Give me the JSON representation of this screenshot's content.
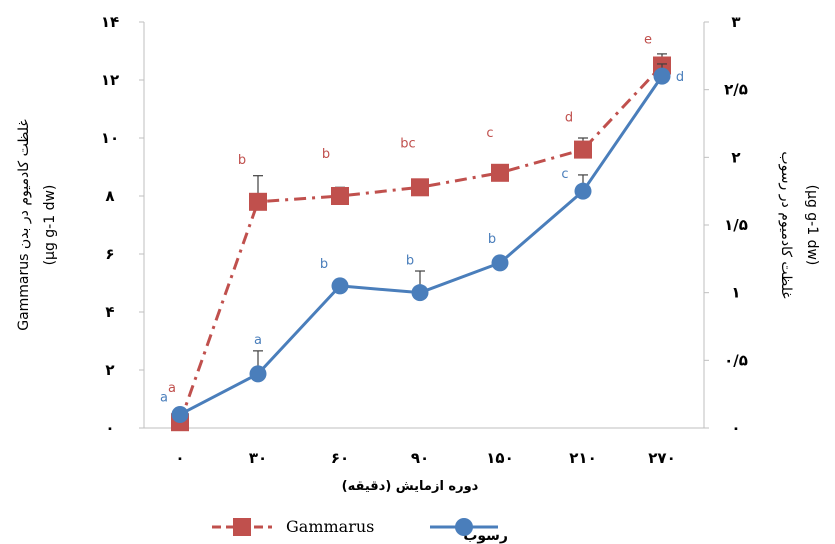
{
  "chart_data": {
    "type": "line",
    "categories": [
      "۰",
      "۳۰",
      "۶۰",
      "۹۰",
      "۱۵۰",
      "۲۱۰",
      "۲۷۰"
    ],
    "xlabel": "دوره ازمایش (دقیقه)",
    "ylabel_left": {
      "line1": "غلظت کادمیوم در بدن Gammarus",
      "line2": "(µg g-1 dw)"
    },
    "ylabel_right": {
      "line1": "غلظت کادمیوم در رسوب",
      "line2": "(µg g-1 dw)"
    },
    "left_axis": {
      "ylim": [
        0,
        14
      ],
      "ticks": [
        0,
        2,
        4,
        6,
        8,
        10,
        12,
        14
      ],
      "tick_labels": [
        "۰",
        "۲",
        "۴",
        "۶",
        "۸",
        "۱۰",
        "۱۲",
        "۱۴"
      ]
    },
    "right_axis": {
      "ylim": [
        0,
        3
      ],
      "ticks": [
        0,
        0.5,
        1,
        1.5,
        2,
        2.5,
        3
      ],
      "tick_labels": [
        "۰",
        "۰/۵",
        "۱",
        "۱/۵",
        "۲",
        "۲/۵",
        "۳"
      ]
    },
    "series": [
      {
        "name": "Gammarus",
        "axis": "left",
        "color": "#c0504d",
        "line_style": "dash-dot",
        "marker": "square",
        "values": [
          0.2,
          7.8,
          8.0,
          8.3,
          8.8,
          9.6,
          12.5
        ],
        "error": [
          0,
          0.9,
          0.3,
          0.1,
          0.1,
          0.4,
          0.4
        ],
        "sig_letters": [
          "a",
          "b",
          "b",
          "bc",
          "c",
          "d",
          "e"
        ]
      },
      {
        "name": "رسوب",
        "axis": "right",
        "color": "#4a7ebb",
        "line_style": "solid",
        "marker": "circle",
        "values": [
          0.1,
          0.4,
          1.05,
          1.0,
          1.22,
          1.75,
          2.6
        ],
        "error": [
          0,
          0.17,
          0,
          0.16,
          0,
          0.12,
          0.09
        ],
        "sig_letters": [
          "a",
          "a",
          "b",
          "b",
          "b",
          "c",
          "d"
        ]
      }
    ],
    "legend": {
      "position": "bottom",
      "items": [
        "Gammarus",
        "رسوب"
      ]
    }
  }
}
